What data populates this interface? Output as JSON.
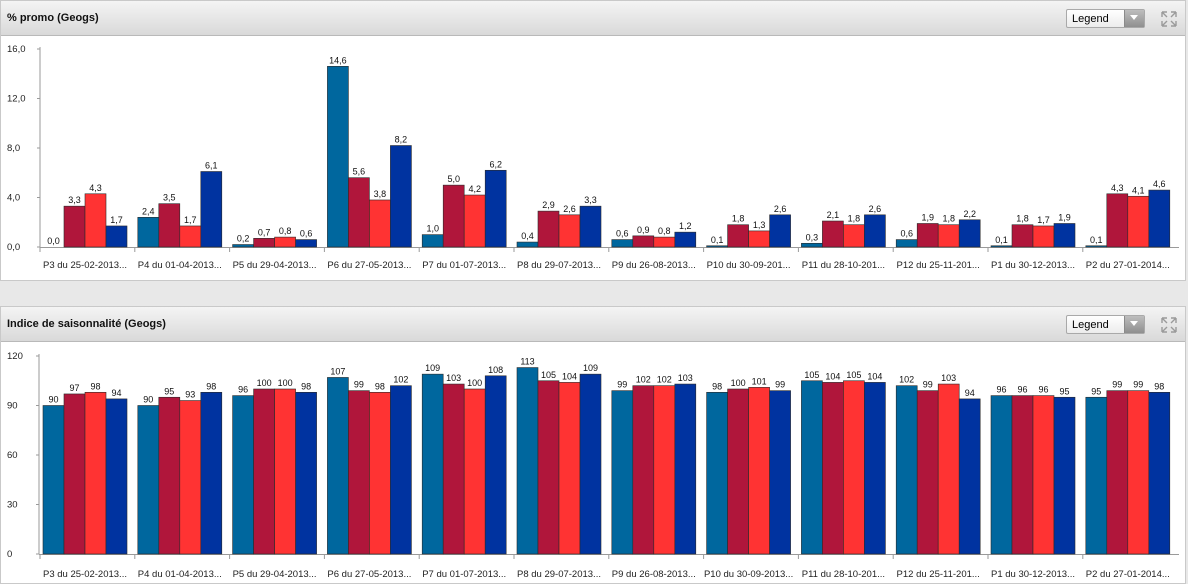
{
  "series_colors": [
    "#00679e",
    "#b0163b",
    "#ff3333",
    "#0033a0"
  ],
  "panels": [
    {
      "title": "% promo (Geogs)",
      "legend_label": "Legend",
      "chart_data": {
        "type": "bar",
        "title": "% promo (Geogs)",
        "categories": [
          "P3 du 25-02-2013...",
          "P4 du 01-04-2013...",
          "P5 du 29-04-2013...",
          "P6 du 27-05-2013...",
          "P7 du 01-07-2013...",
          "P8 du 29-07-2013...",
          "P9 du 26-08-2013...",
          "P10 du 30-09-201...",
          "P11 du 28-10-201...",
          "P12 du 25-11-201...",
          "P1 du 30-12-2013...",
          "P2 du 27-01-2014..."
        ],
        "series": [
          {
            "values": [
              0.0,
              2.4,
              0.2,
              14.6,
              1.0,
              0.4,
              0.6,
              0.1,
              0.3,
              0.6,
              0.1,
              0.1
            ]
          },
          {
            "values": [
              3.3,
              3.5,
              0.7,
              5.6,
              5.0,
              2.9,
              0.9,
              1.8,
              2.1,
              1.9,
              1.8,
              4.3
            ]
          },
          {
            "values": [
              4.3,
              1.7,
              0.8,
              3.8,
              4.2,
              2.6,
              0.8,
              1.3,
              1.8,
              1.8,
              1.7,
              4.1
            ]
          },
          {
            "values": [
              1.7,
              6.1,
              0.6,
              8.2,
              6.2,
              3.3,
              1.2,
              2.6,
              2.6,
              2.2,
              1.9,
              4.6
            ]
          }
        ],
        "labels": [
          [
            "0,0",
            "2,4",
            "0,2",
            "14,6",
            "1,0",
            "0,4",
            "0,6",
            "0,1",
            "0,3",
            "0,6",
            "0,1",
            "0,1"
          ],
          [
            "3,3",
            "3,5",
            "0,7",
            "5,6",
            "5,0",
            "2,9",
            "0,9",
            "1,8",
            "2,1",
            "1,9",
            "1,8",
            "4,3"
          ],
          [
            "4,3",
            "1,7",
            "0,8",
            "3,8",
            "4,2",
            "2,6",
            "0,8",
            "1,3",
            "1,8",
            "1,8",
            "1,7",
            "4,1"
          ],
          [
            "1,7",
            "6,1",
            "0,6",
            "8,2",
            "6,2",
            "3,3",
            "1,2",
            "2,6",
            "2,6",
            "2,2",
            "1,9",
            "4,6"
          ]
        ],
        "ylim": [
          0,
          16
        ],
        "yticks": [
          0,
          4,
          8,
          12,
          16
        ],
        "ytick_labels": [
          "0,0",
          "4,0",
          "8,0",
          "12,0",
          "16,0"
        ],
        "grid": false
      }
    },
    {
      "title": "Indice de saisonnalité (Geogs)",
      "legend_label": "Legend",
      "chart_data": {
        "type": "bar",
        "title": "Indice de saisonnalité (Geogs)",
        "categories": [
          "P3 du 25-02-2013...",
          "P4 du 01-04-2013...",
          "P5 du 29-04-2013...",
          "P6 du 27-05-2013...",
          "P7 du 01-07-2013...",
          "P8 du 29-07-2013...",
          "P9 du 26-08-2013...",
          "P10 du 30-09-2013...",
          "P11 du 28-10-201...",
          "P12 du 25-11-201...",
          "P1 du 30-12-2013...",
          "P2 du 27-01-2014..."
        ],
        "series": [
          {
            "values": [
              90,
              90,
              96,
              107,
              109,
              113,
              99,
              98,
              105,
              102,
              96,
              95
            ]
          },
          {
            "values": [
              97,
              95,
              100,
              99,
              103,
              105,
              102,
              100,
              104,
              99,
              96,
              99
            ]
          },
          {
            "values": [
              98,
              93,
              100,
              98,
              100,
              104,
              102,
              101,
              105,
              103,
              96,
              99
            ]
          },
          {
            "values": [
              94,
              98,
              98,
              102,
              108,
              109,
              103,
              99,
              104,
              94,
              95,
              98
            ]
          }
        ],
        "labels": [
          [
            "90",
            "90",
            "96",
            "107",
            "109",
            "113",
            "99",
            "98",
            "105",
            "102",
            "96",
            "95"
          ],
          [
            "97",
            "95",
            "100",
            "99",
            "103",
            "105",
            "102",
            "100",
            "104",
            "99",
            "96",
            "99"
          ],
          [
            "98",
            "93",
            "100",
            "98",
            "100",
            "104",
            "102",
            "101",
            "105",
            "103",
            "96",
            "99"
          ],
          [
            "94",
            "98",
            "98",
            "102",
            "108",
            "109",
            "103",
            "99",
            "104",
            "94",
            "95",
            "98"
          ]
        ],
        "ylim": [
          0,
          120
        ],
        "yticks": [
          0,
          30,
          60,
          90,
          120
        ],
        "ytick_labels": [
          "0",
          "30",
          "60",
          "90",
          "120"
        ],
        "grid": false
      }
    }
  ]
}
